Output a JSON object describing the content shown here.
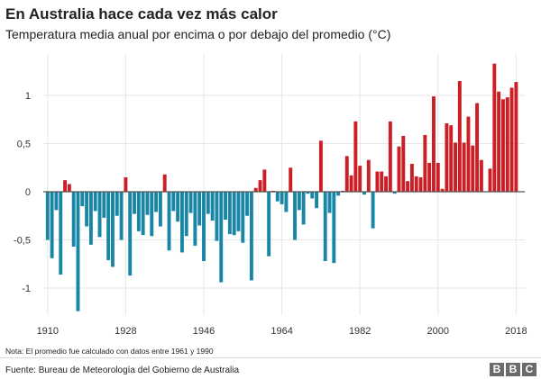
{
  "chart_data": {
    "type": "bar",
    "title": "En Australia hace cada vez más calor",
    "subtitle": "Temperatura media anual por encima o por debajo del promedio (°C)",
    "xlabel": "",
    "ylabel": "",
    "ylim": [
      -1.4,
      1.4
    ],
    "yticks": [
      -1,
      -0.5,
      0,
      0.5,
      1
    ],
    "ytick_labels": [
      "-1",
      "-0,5",
      "0",
      "0,5",
      "1"
    ],
    "xticks": [
      1910,
      1928,
      1946,
      1964,
      1982,
      2000,
      2018
    ],
    "xlim": [
      1909,
      2020
    ],
    "grid": true,
    "colors": {
      "positive": "#cc1f25",
      "negative": "#1a86a6",
      "grid": "#e6e6e6",
      "axis": "#555555"
    },
    "years": [
      1910,
      1911,
      1912,
      1913,
      1914,
      1915,
      1916,
      1917,
      1918,
      1919,
      1920,
      1921,
      1922,
      1923,
      1924,
      1925,
      1926,
      1927,
      1928,
      1929,
      1930,
      1931,
      1932,
      1933,
      1934,
      1935,
      1936,
      1937,
      1938,
      1939,
      1940,
      1941,
      1942,
      1943,
      1944,
      1945,
      1946,
      1947,
      1948,
      1949,
      1950,
      1951,
      1952,
      1953,
      1954,
      1955,
      1956,
      1957,
      1958,
      1959,
      1960,
      1961,
      1962,
      1963,
      1964,
      1965,
      1966,
      1967,
      1968,
      1969,
      1970,
      1971,
      1972,
      1973,
      1974,
      1975,
      1976,
      1977,
      1978,
      1979,
      1980,
      1981,
      1982,
      1983,
      1984,
      1985,
      1986,
      1987,
      1988,
      1989,
      1990,
      1991,
      1992,
      1993,
      1994,
      1995,
      1996,
      1997,
      1998,
      1999,
      2000,
      2001,
      2002,
      2003,
      2004,
      2005,
      2006,
      2007,
      2008,
      2009,
      2010,
      2011,
      2012,
      2013,
      2014,
      2015,
      2016,
      2017,
      2018,
      2019
    ],
    "values": [
      -0.5,
      -0.69,
      -0.19,
      -0.86,
      0.12,
      0.08,
      -0.57,
      -1.24,
      -0.15,
      -0.36,
      -0.55,
      -0.2,
      -0.47,
      -0.27,
      -0.71,
      -0.78,
      -0.25,
      -0.5,
      0.15,
      -0.87,
      -0.23,
      -0.41,
      -0.45,
      -0.24,
      -0.46,
      -0.21,
      -0.36,
      0.18,
      -0.61,
      -0.2,
      -0.31,
      -0.63,
      -0.46,
      -0.22,
      -0.56,
      -0.35,
      -0.72,
      -0.23,
      -0.3,
      -0.51,
      -0.94,
      -0.29,
      -0.44,
      -0.45,
      -0.41,
      -0.53,
      -0.25,
      -0.92,
      0.04,
      0.12,
      0.23,
      -0.67,
      0.01,
      -0.1,
      -0.13,
      -0.21,
      0.25,
      -0.5,
      -0.19,
      -0.34,
      -0.02,
      -0.07,
      -0.17,
      0.53,
      -0.72,
      -0.22,
      -0.74,
      -0.04,
      0.01,
      0.37,
      0.17,
      0.73,
      0.27,
      -0.03,
      0.33,
      -0.38,
      0.21,
      0.21,
      0.16,
      0.73,
      -0.02,
      0.47,
      0.58,
      0.11,
      0.29,
      0.16,
      0.15,
      0.59,
      0.3,
      0.99,
      0.3,
      0.03,
      0.71,
      0.69,
      0.51,
      1.15,
      0.51,
      0.78,
      0.48,
      0.92,
      0.33,
      0.0,
      0.24,
      1.33,
      1.04,
      0.96,
      0.98,
      1.08,
      1.14,
      0.0
    ]
  },
  "footer": {
    "note": "Nota: El promedio fue calculado con datos entre 1961 y 1990",
    "source": "Fuente: Bureau de Meteorología del Gobierno de Australia",
    "logo": [
      "B",
      "B",
      "C"
    ]
  }
}
